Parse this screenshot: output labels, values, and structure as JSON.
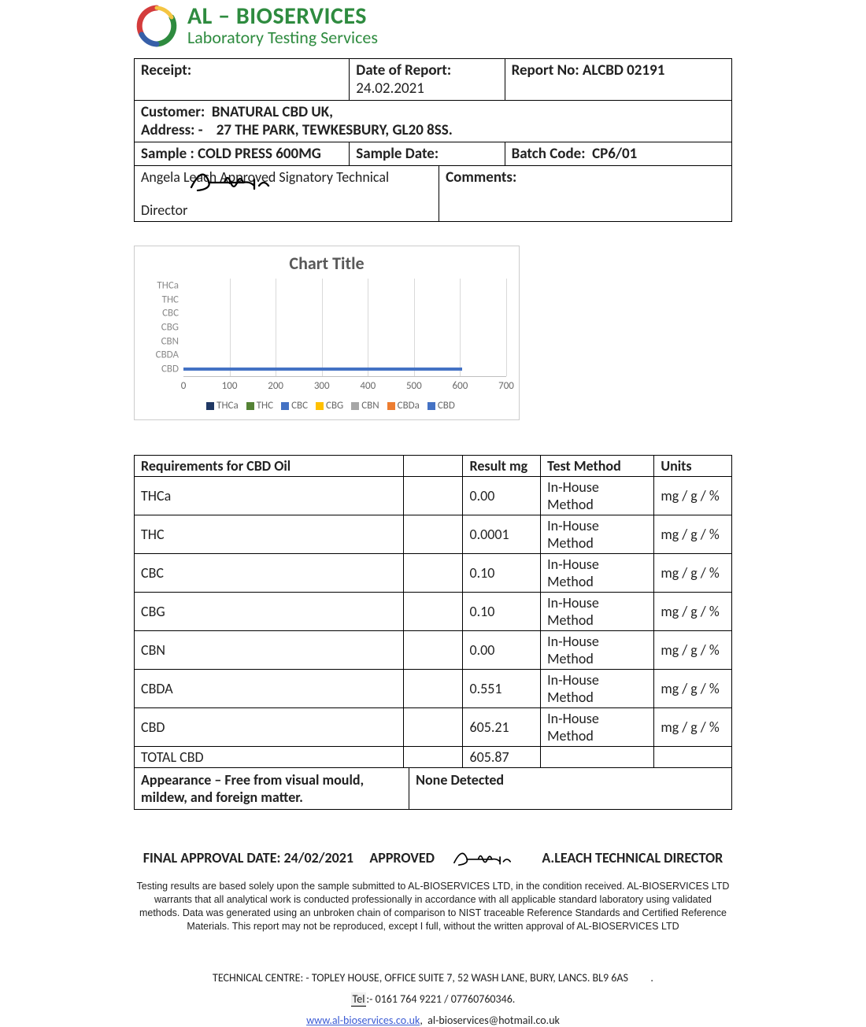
{
  "company": {
    "name": "AL – BIOSERVICES",
    "sub": "Laboratory Testing Services"
  },
  "info": {
    "receipt_label": "Receipt:",
    "date_label": "Date of Report:",
    "date_value": "24.02.2021",
    "report_label": "Report No:",
    "report_value": "ALCBD 02191",
    "customer_label": "Customer:",
    "customer_value": "BNATURAL CBD UK,",
    "address_label": "Address: -",
    "address_value": "27 THE PARK, TEWKESBURY, GL20 8SS.",
    "sample_label": "Sample :",
    "sample_value": "COLD PRESS 600MG",
    "sample_date_label": "Sample Date:",
    "batch_label": "Batch Code:",
    "batch_value": "CP6/01",
    "signatory_line1": "Angela Leach Approved Signatory Technical",
    "signatory_line2": "Director",
    "comments_label": "Comments:"
  },
  "chart": {
    "title": "Chart Title",
    "x_max": 700,
    "x_step": 100,
    "categories": [
      "THCa",
      "THC",
      "CBC",
      "CBG",
      "CBN",
      "CBDA",
      "CBD"
    ],
    "cbd_value": 605.21,
    "axis_color": "#d9d9d9",
    "text_color": "#8a8a8a",
    "legend": [
      {
        "label": "THCa",
        "color": "#203864"
      },
      {
        "label": "THC",
        "color": "#548235"
      },
      {
        "label": "CBC",
        "color": "#4472c4"
      },
      {
        "label": "CBG",
        "color": "#ffc000"
      },
      {
        "label": "CBN",
        "color": "#a6a6a6"
      },
      {
        "label": "CBDa",
        "color": "#ed7d31"
      },
      {
        "label": "CBD",
        "color": "#4472c4"
      }
    ]
  },
  "results": {
    "header": [
      "Requirements for CBD Oil",
      "",
      "Result mg",
      "Test Method",
      "Units"
    ],
    "rows": [
      [
        "THCa",
        "",
        "0.00",
        "In-House Method",
        "mg / g / %"
      ],
      [
        "THC",
        "",
        "0.0001",
        "In-House Method",
        "mg / g / %"
      ],
      [
        "CBC",
        "",
        "0.10",
        "In-House Method",
        "mg / g / %"
      ],
      [
        "CBG",
        "",
        "0.10",
        "In-House Method",
        "mg / g / %"
      ],
      [
        "CBN",
        "",
        "0.00",
        "In-House Method",
        "mg / g / %"
      ],
      [
        "CBDA",
        "",
        "0.551",
        "In-House Method",
        "mg / g / %"
      ],
      [
        "CBD",
        "",
        "605.21",
        "In-House Method",
        "mg / g / %"
      ],
      [
        "TOTAL CBD",
        "",
        "605.87",
        "",
        ""
      ]
    ],
    "col_widths": [
      "45%",
      "10%",
      "13%",
      "19%",
      "13%"
    ]
  },
  "appearance": {
    "req": "Appearance – Free from visual mould, mildew, and foreign matter.",
    "result": "None Detected"
  },
  "approval": {
    "date_label": "FINAL APPROVAL DATE:",
    "date": "24/02/2021",
    "approved": "APPROVED",
    "role": "A.LEACH TECHNICAL DIRECTOR"
  },
  "disclaimer": "Testing results are based solely upon the sample submitted to AL-BIOSERVICES LTD, in the condition received. AL-BIOSERVICES LTD warrants that all analytical work is conducted professionally in accordance with all applicable standard laboratory using validated methods. Data was generated using an unbroken chain of comparison to NIST traceable Reference Standards and Certified Reference Materials. This report may not be reproduced, except I full, without the written approval of AL-BIOSERVICES LTD",
  "footer": {
    "tech_centre": "TECHNICAL CENTRE: - TOPLEY HOUSE, OFFICE SUITE 7, 52 WASH LANE, BURY, LANCS. BL9 6AS",
    "tel_label": "Tel",
    "tel": ":- 0161 764 9221 / 07760760346.",
    "url": "www.al-bioservices.co.uk",
    "email": "al-bioservices@hotmail.co.uk"
  }
}
